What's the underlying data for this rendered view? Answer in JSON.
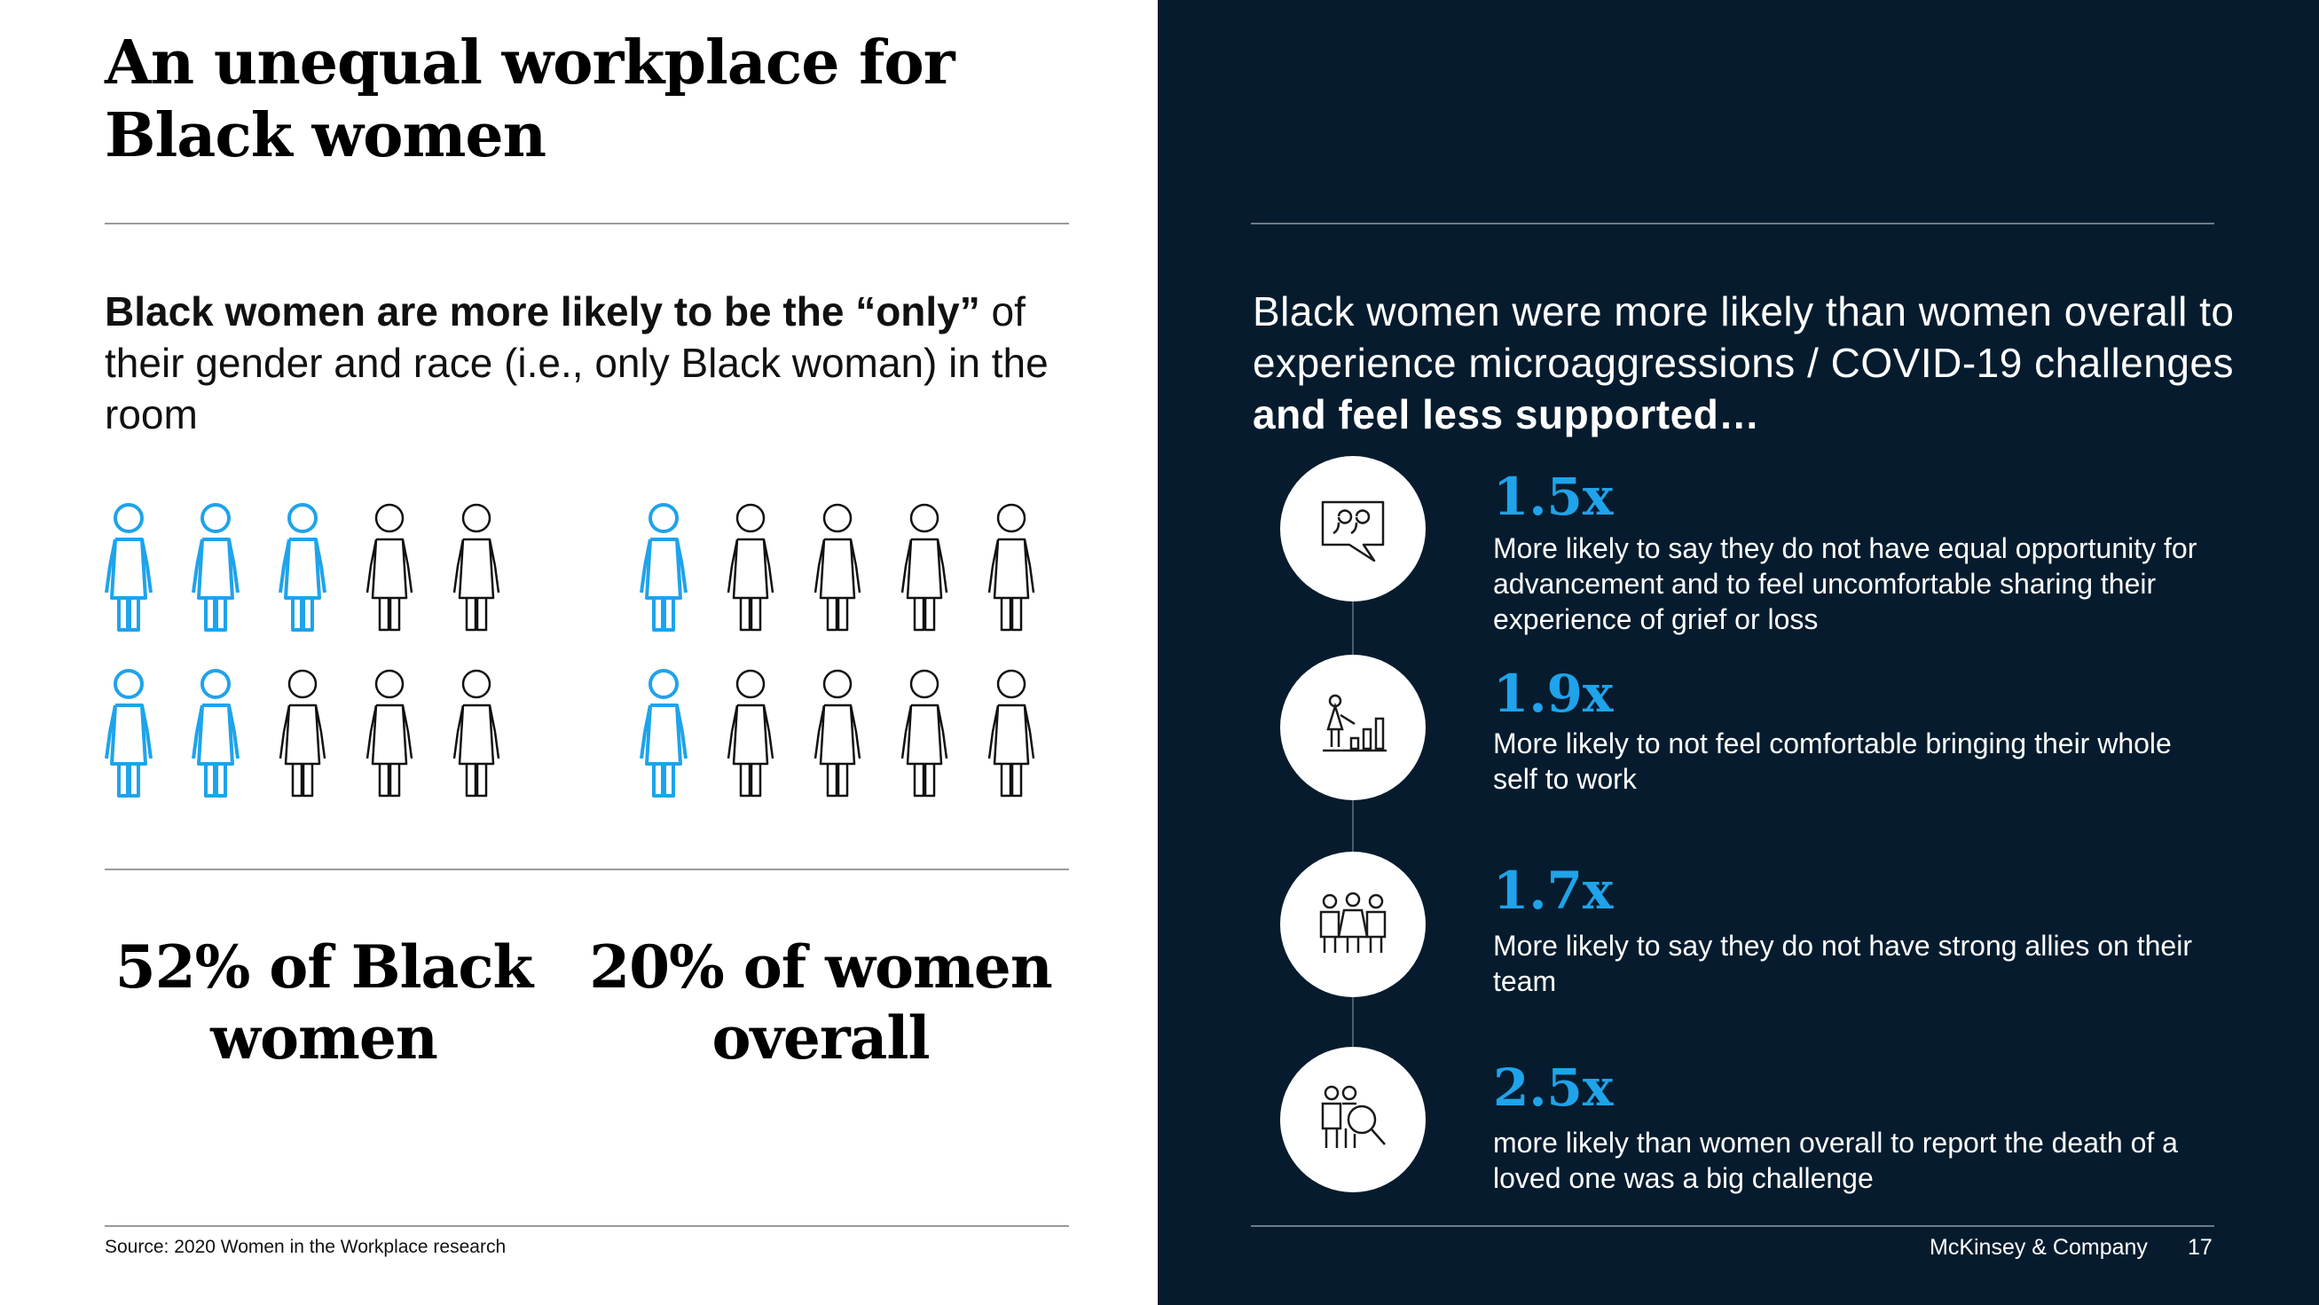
{
  "title": "An unequal workplace for Black women",
  "left": {
    "lead_bold": "Black women are more likely to be the “only”",
    "lead_rest": " of their gender and race (i.e., only Black woman) in the room",
    "groups": [
      {
        "highlighted": 5,
        "total": 10,
        "stat": "52% of Black women"
      },
      {
        "highlighted": 2,
        "total": 10,
        "stat": "20% of women overall"
      }
    ],
    "source": "Source: 2020 Women in the Workplace research"
  },
  "right": {
    "heading_plain": "Black women were more likely than women overall to experience microaggressions / COVID-19 challenges ",
    "heading_bold": "and feel less supported…",
    "items": [
      {
        "icon": "speech-bubble-quote-icon",
        "multiplier": "1.5x",
        "text": "More likely to say they do not have equal opportunity for advancement and to feel uncomfortable sharing their experience of grief or loss"
      },
      {
        "icon": "person-bar-chart-icon",
        "multiplier": "1.9x",
        "text": "More likely to not feel comfortable bringing their whole self to work"
      },
      {
        "icon": "team-people-icon",
        "multiplier": "1.7x",
        "text": "More likely to say they do not have strong allies on their team"
      },
      {
        "icon": "people-magnifier-icon",
        "multiplier": "2.5x",
        "text": "more likely than women overall to report the death of a loved one was a big challenge"
      }
    ]
  },
  "footer": {
    "brand": "McKinsey & Company",
    "page": "17"
  },
  "colors": {
    "dark_bg": "#061c2e",
    "accent": "#1fa3ea",
    "figure_blue": "#1fa3ea",
    "figure_black": "#111111"
  }
}
